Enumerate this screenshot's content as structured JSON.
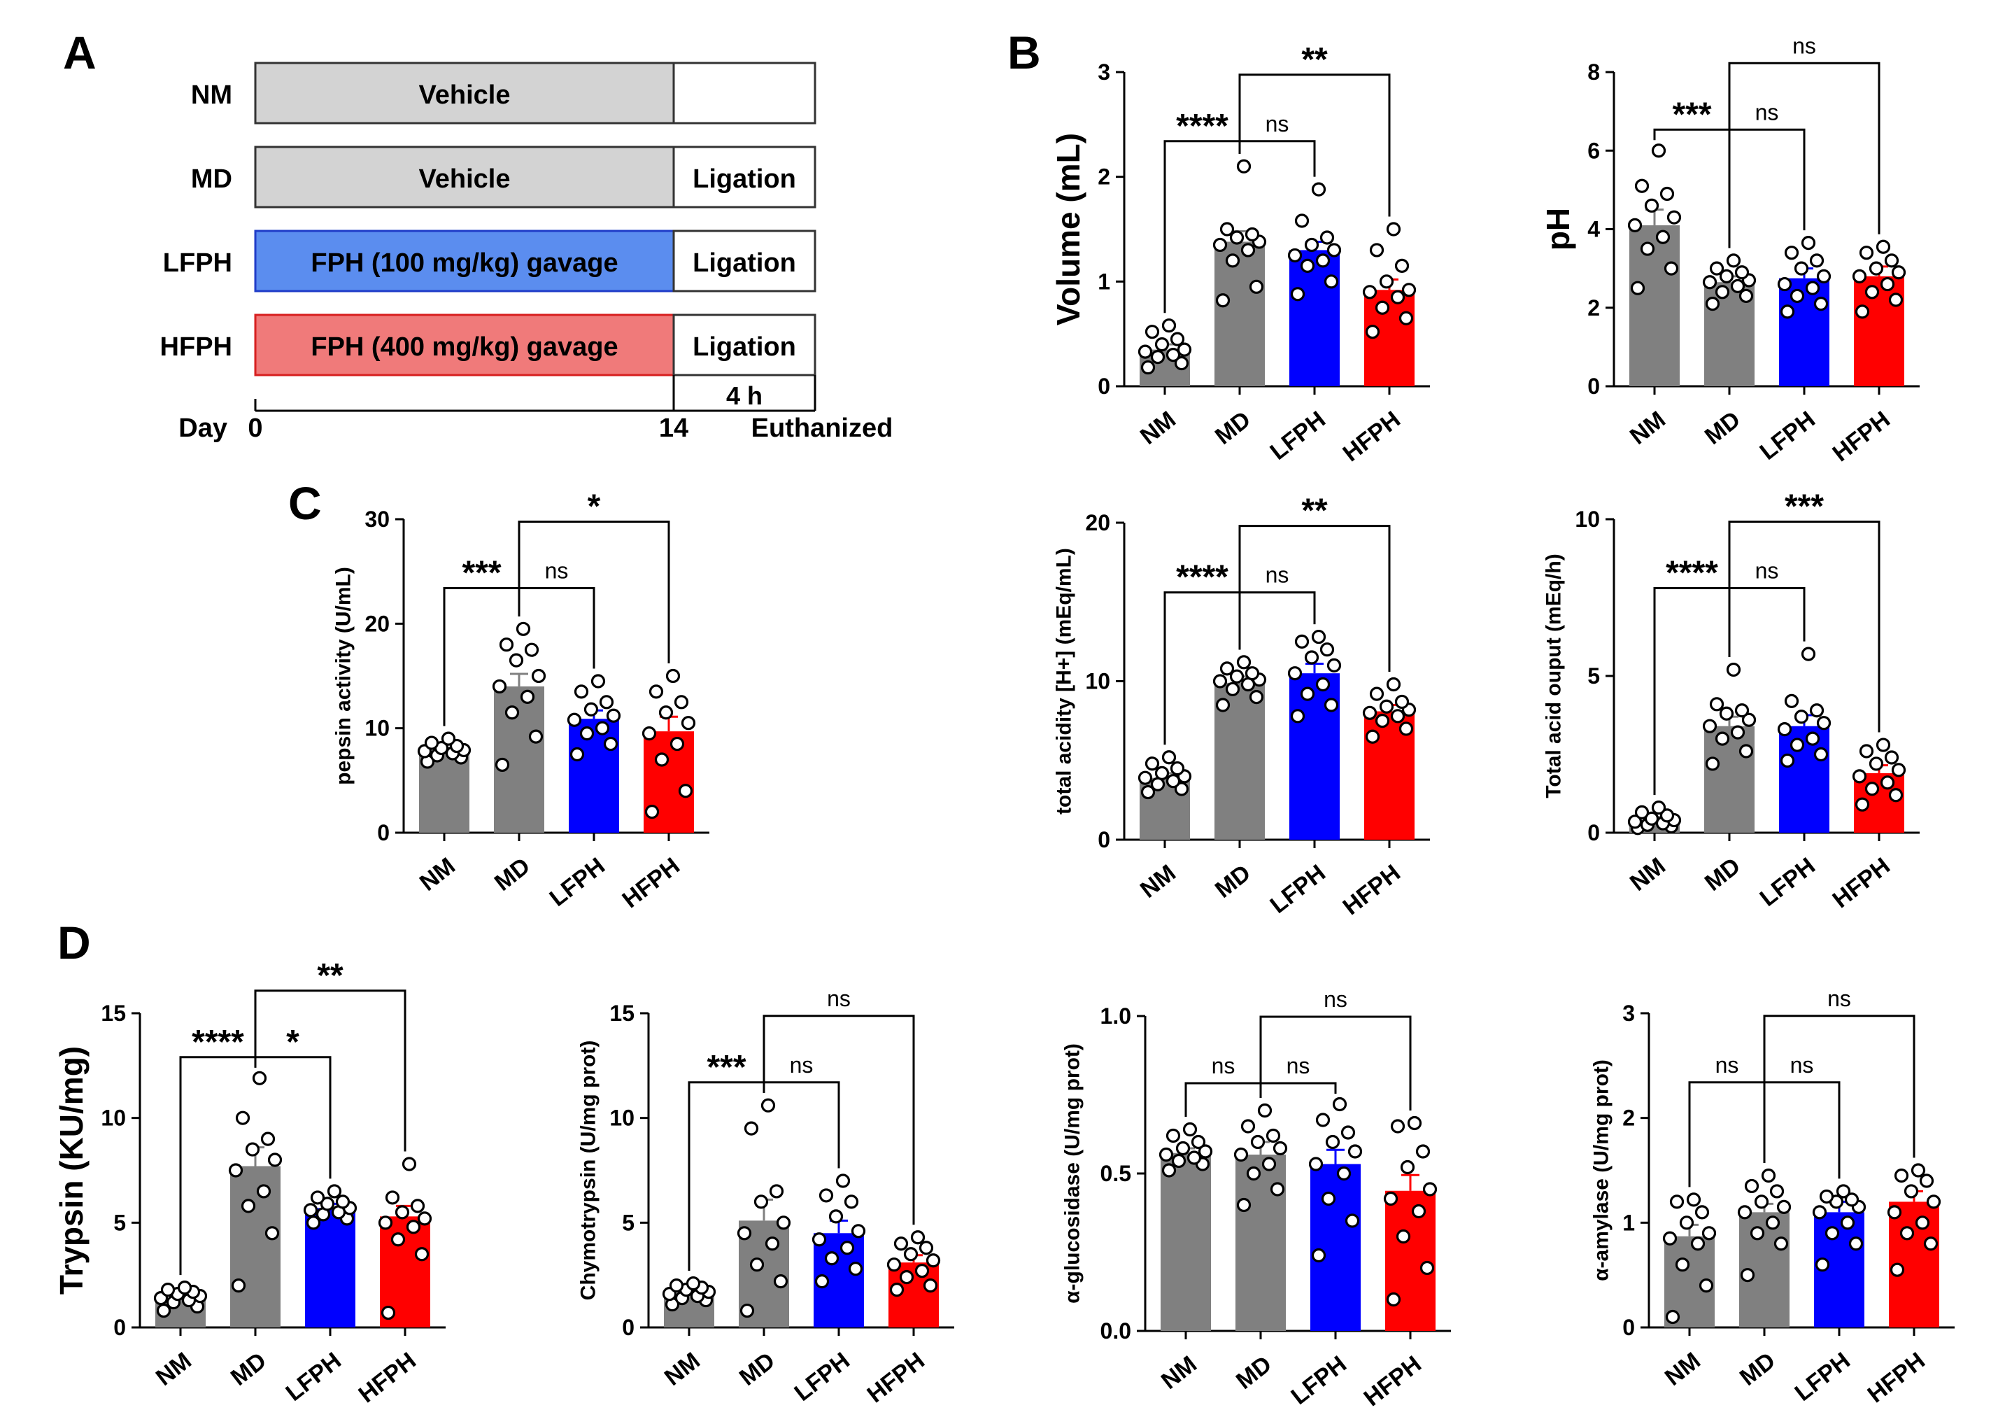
{
  "panel_labels": [
    "A",
    "B",
    "C",
    "D"
  ],
  "protocol": {
    "rows": [
      {
        "group": "NM",
        "treatment": "Vehicle",
        "post": "",
        "fill": "#d3d3d3",
        "stroke": "#333333"
      },
      {
        "group": "MD",
        "treatment": "Vehicle",
        "post": "Ligation",
        "fill": "#d3d3d3",
        "stroke": "#333333"
      },
      {
        "group": "LFPH",
        "treatment": "FPH  (100 mg/kg) gavage",
        "post": "Ligation",
        "fill": "#5b8def",
        "stroke": "#1f3cc8"
      },
      {
        "group": "HFPH",
        "treatment": "FPH  (400 mg/kg) gavage",
        "post": "Ligation",
        "fill": "#f07a7a",
        "stroke": "#d71f1f"
      }
    ],
    "duration_label": "4 h",
    "day_label": "Day",
    "day_start": "0",
    "day_end": "14",
    "end_label": "Euthanized"
  },
  "colors": {
    "NM": "#808080",
    "MD": "#808080",
    "LFPH": "#0000ff",
    "HFPH": "#ff0000"
  },
  "chart_data": [
    {
      "panel": "B",
      "type": "bar",
      "ylabel": "Volume (mL)",
      "ylim": [
        0,
        3
      ],
      "yticks": [
        "0",
        "1",
        "2",
        "3"
      ],
      "categories": [
        "NM",
        "MD",
        "LFPH",
        "HFPH"
      ],
      "values": [
        0.35,
        1.38,
        1.3,
        0.92
      ],
      "errors": [
        0.05,
        0.1,
        0.08,
        0.1
      ],
      "points": [
        [
          0.18,
          0.22,
          0.28,
          0.3,
          0.33,
          0.35,
          0.4,
          0.45,
          0.52,
          0.58
        ],
        [
          0.82,
          0.95,
          1.2,
          1.3,
          1.35,
          1.38,
          1.42,
          1.45,
          1.5,
          2.1
        ],
        [
          0.88,
          1.0,
          1.15,
          1.2,
          1.25,
          1.3,
          1.35,
          1.42,
          1.58,
          1.88
        ],
        [
          0.52,
          0.65,
          0.75,
          0.85,
          0.9,
          0.92,
          1.0,
          1.15,
          1.3,
          1.5
        ]
      ],
      "comparisons": [
        {
          "from": 0,
          "to": 1,
          "label": "****"
        },
        {
          "from": 1,
          "to": 2,
          "label": "ns"
        },
        {
          "from": 1,
          "to": 3,
          "label": "**"
        }
      ]
    },
    {
      "panel": "B",
      "type": "bar",
      "ylabel": "pH",
      "ylim": [
        0,
        8
      ],
      "yticks": [
        "0",
        "2",
        "4",
        "6",
        "8"
      ],
      "categories": [
        "NM",
        "MD",
        "LFPH",
        "HFPH"
      ],
      "values": [
        4.1,
        2.65,
        2.75,
        2.8
      ],
      "errors": [
        0.4,
        0.15,
        0.25,
        0.25
      ],
      "points": [
        [
          2.5,
          3.0,
          3.5,
          3.8,
          4.1,
          4.3,
          4.6,
          4.9,
          5.1,
          6.0
        ],
        [
          2.1,
          2.3,
          2.4,
          2.55,
          2.65,
          2.7,
          2.8,
          2.9,
          3.0,
          3.2
        ],
        [
          1.9,
          2.1,
          2.3,
          2.5,
          2.6,
          2.8,
          3.0,
          3.2,
          3.4,
          3.65
        ],
        [
          1.9,
          2.2,
          2.4,
          2.6,
          2.8,
          2.9,
          3.0,
          3.2,
          3.4,
          3.55
        ]
      ],
      "comparisons": [
        {
          "from": 0,
          "to": 1,
          "label": "***"
        },
        {
          "from": 1,
          "to": 2,
          "label": "ns"
        },
        {
          "from": 1,
          "to": 3,
          "label": "ns"
        }
      ]
    },
    {
      "panel": "C",
      "type": "bar",
      "ylabel": "pepsin activity (U/mL)",
      "ylim": [
        0,
        30
      ],
      "yticks": [
        "0",
        "10",
        "20",
        "30"
      ],
      "categories": [
        "NM",
        "MD",
        "LFPH",
        "HFPH"
      ],
      "values": [
        7.8,
        14.0,
        10.9,
        9.7
      ],
      "errors": [
        0.3,
        1.2,
        0.8,
        1.4
      ],
      "points": [
        [
          6.8,
          7.2,
          7.4,
          7.6,
          7.8,
          7.9,
          8.1,
          8.3,
          8.6,
          9.0
        ],
        [
          6.5,
          9.2,
          11.5,
          13.0,
          14.0,
          15.0,
          16.5,
          17.5,
          18.0,
          19.5
        ],
        [
          7.5,
          8.5,
          9.5,
          10.0,
          10.8,
          11.2,
          11.8,
          12.5,
          13.5,
          14.5
        ],
        [
          2.0,
          4.0,
          7.0,
          8.5,
          9.5,
          10.5,
          11.5,
          12.5,
          13.5,
          15.0
        ]
      ],
      "comparisons": [
        {
          "from": 0,
          "to": 1,
          "label": "***"
        },
        {
          "from": 1,
          "to": 2,
          "label": "ns"
        },
        {
          "from": 1,
          "to": 3,
          "label": "*"
        }
      ]
    },
    {
      "panel": "C",
      "type": "bar",
      "ylabel": "total acidity [H+] (mEq/mL)",
      "ylim": [
        0,
        20
      ],
      "yticks": [
        "0",
        "10",
        "20"
      ],
      "categories": [
        "NM",
        "MD",
        "LFPH",
        "HFPH"
      ],
      "values": [
        3.9,
        9.9,
        10.5,
        8.1
      ],
      "errors": [
        0.3,
        0.4,
        0.6,
        0.4
      ],
      "points": [
        [
          3.0,
          3.2,
          3.5,
          3.7,
          3.9,
          4.0,
          4.2,
          4.5,
          4.8,
          5.2
        ],
        [
          8.5,
          9.0,
          9.5,
          9.8,
          10.0,
          10.1,
          10.3,
          10.5,
          10.8,
          11.2
        ],
        [
          7.8,
          8.5,
          9.2,
          9.8,
          10.5,
          11.0,
          11.5,
          12.0,
          12.5,
          12.8
        ],
        [
          6.5,
          7.0,
          7.5,
          7.8,
          8.0,
          8.2,
          8.4,
          8.7,
          9.2,
          9.8
        ]
      ],
      "comparisons": [
        {
          "from": 0,
          "to": 1,
          "label": "****"
        },
        {
          "from": 1,
          "to": 2,
          "label": "ns"
        },
        {
          "from": 1,
          "to": 3,
          "label": "**"
        }
      ]
    },
    {
      "panel": "C",
      "type": "bar",
      "ylabel": "Total acid ouput (mEq/h)",
      "ylim": [
        0,
        10
      ],
      "yticks": [
        "0",
        "5",
        "10"
      ],
      "categories": [
        "NM",
        "MD",
        "LFPH",
        "HFPH"
      ],
      "values": [
        0.4,
        3.4,
        3.4,
        1.9
      ],
      "errors": [
        0.1,
        0.3,
        0.35,
        0.25
      ],
      "points": [
        [
          0.15,
          0.2,
          0.25,
          0.3,
          0.35,
          0.4,
          0.45,
          0.55,
          0.65,
          0.8
        ],
        [
          2.2,
          2.6,
          3.0,
          3.2,
          3.4,
          3.6,
          3.8,
          3.9,
          4.1,
          5.2
        ],
        [
          2.3,
          2.5,
          2.8,
          3.0,
          3.3,
          3.5,
          3.7,
          3.9,
          4.2,
          5.7
        ],
        [
          0.9,
          1.2,
          1.4,
          1.6,
          1.8,
          2.0,
          2.2,
          2.4,
          2.6,
          2.8
        ]
      ],
      "comparisons": [
        {
          "from": 0,
          "to": 1,
          "label": "****"
        },
        {
          "from": 1,
          "to": 2,
          "label": "ns"
        },
        {
          "from": 1,
          "to": 3,
          "label": "***"
        }
      ]
    },
    {
      "panel": "D",
      "type": "bar",
      "ylabel": "Trypsin (KU/mg)",
      "ylim": [
        0,
        15
      ],
      "yticks": [
        "0",
        "5",
        "10",
        "15"
      ],
      "categories": [
        "NM",
        "MD",
        "LFPH",
        "HFPH"
      ],
      "values": [
        1.4,
        7.7,
        5.7,
        5.3
      ],
      "errors": [
        0.15,
        0.9,
        0.2,
        0.5
      ],
      "points": [
        [
          0.8,
          1.0,
          1.2,
          1.3,
          1.4,
          1.5,
          1.6,
          1.7,
          1.8,
          1.9
        ],
        [
          2.0,
          4.5,
          5.8,
          6.5,
          7.5,
          8.0,
          8.5,
          9.0,
          10.0,
          11.9
        ],
        [
          5.0,
          5.2,
          5.4,
          5.5,
          5.6,
          5.7,
          5.9,
          6.0,
          6.2,
          6.5
        ],
        [
          0.7,
          3.5,
          4.2,
          4.8,
          5.0,
          5.2,
          5.5,
          5.8,
          6.2,
          7.8
        ]
      ],
      "comparisons": [
        {
          "from": 0,
          "to": 1,
          "label": "****"
        },
        {
          "from": 1,
          "to": 2,
          "label": "*"
        },
        {
          "from": 1,
          "to": 3,
          "label": "**"
        }
      ]
    },
    {
      "panel": "D",
      "type": "bar",
      "ylabel": "Chymotrypsin (U/mg prot)",
      "ylim": [
        0,
        15
      ],
      "yticks": [
        "0",
        "5",
        "10",
        "15"
      ],
      "categories": [
        "NM",
        "MD",
        "LFPH",
        "HFPH"
      ],
      "values": [
        1.6,
        5.1,
        4.5,
        3.1
      ],
      "errors": [
        0.15,
        1.0,
        0.6,
        0.35
      ],
      "points": [
        [
          1.1,
          1.3,
          1.4,
          1.5,
          1.6,
          1.7,
          1.8,
          1.9,
          2.0,
          2.1
        ],
        [
          0.8,
          2.2,
          3.0,
          4.0,
          4.5,
          5.0,
          6.0,
          6.5,
          9.5,
          10.6
        ],
        [
          2.2,
          2.8,
          3.3,
          3.8,
          4.2,
          4.6,
          5.3,
          6.0,
          6.3,
          7.0
        ],
        [
          1.8,
          2.0,
          2.4,
          2.7,
          3.0,
          3.2,
          3.5,
          3.8,
          4.0,
          4.3
        ]
      ],
      "comparisons": [
        {
          "from": 0,
          "to": 1,
          "label": "***"
        },
        {
          "from": 1,
          "to": 2,
          "label": "ns"
        },
        {
          "from": 1,
          "to": 3,
          "label": "ns"
        }
      ]
    },
    {
      "panel": "D",
      "type": "bar",
      "ylabel": "α-glucosidase (U/mg prot)",
      "ylim": [
        0,
        1
      ],
      "yticks": [
        "0.0",
        "0.5",
        "1.0"
      ],
      "categories": [
        "NM",
        "MD",
        "LFPH",
        "HFPH"
      ],
      "values": [
        0.565,
        0.56,
        0.53,
        0.445
      ],
      "errors": [
        0.015,
        0.04,
        0.045,
        0.05
      ],
      "points": [
        [
          0.51,
          0.53,
          0.54,
          0.55,
          0.56,
          0.57,
          0.58,
          0.6,
          0.62,
          0.64
        ],
        [
          0.4,
          0.45,
          0.5,
          0.53,
          0.56,
          0.58,
          0.6,
          0.62,
          0.65,
          0.7
        ],
        [
          0.24,
          0.35,
          0.42,
          0.5,
          0.53,
          0.57,
          0.6,
          0.63,
          0.67,
          0.72
        ],
        [
          0.1,
          0.2,
          0.3,
          0.38,
          0.42,
          0.45,
          0.52,
          0.57,
          0.65,
          0.66
        ]
      ],
      "comparisons": [
        {
          "from": 0,
          "to": 1,
          "label": "ns"
        },
        {
          "from": 1,
          "to": 2,
          "label": "ns"
        },
        {
          "from": 1,
          "to": 3,
          "label": "ns"
        }
      ]
    },
    {
      "panel": "D",
      "type": "bar",
      "ylabel": "α-amylase (U/mg prot)",
      "ylim": [
        0,
        3
      ],
      "yticks": [
        "0",
        "1",
        "2",
        "3"
      ],
      "categories": [
        "NM",
        "MD",
        "LFPH",
        "HFPH"
      ],
      "values": [
        0.87,
        1.1,
        1.1,
        1.2
      ],
      "errors": [
        0.11,
        0.08,
        0.1,
        0.1
      ],
      "points": [
        [
          0.1,
          0.4,
          0.6,
          0.8,
          0.85,
          0.9,
          1.0,
          1.1,
          1.2,
          1.22
        ],
        [
          0.5,
          0.8,
          0.9,
          1.0,
          1.1,
          1.15,
          1.2,
          1.3,
          1.35,
          1.45
        ],
        [
          0.6,
          0.8,
          0.9,
          1.0,
          1.1,
          1.15,
          1.2,
          1.22,
          1.25,
          1.3
        ],
        [
          0.55,
          0.8,
          0.9,
          1.0,
          1.1,
          1.2,
          1.3,
          1.4,
          1.45,
          1.5
        ]
      ],
      "comparisons": [
        {
          "from": 0,
          "to": 1,
          "label": "ns"
        },
        {
          "from": 1,
          "to": 2,
          "label": "ns"
        },
        {
          "from": 1,
          "to": 3,
          "label": "ns"
        }
      ]
    }
  ]
}
